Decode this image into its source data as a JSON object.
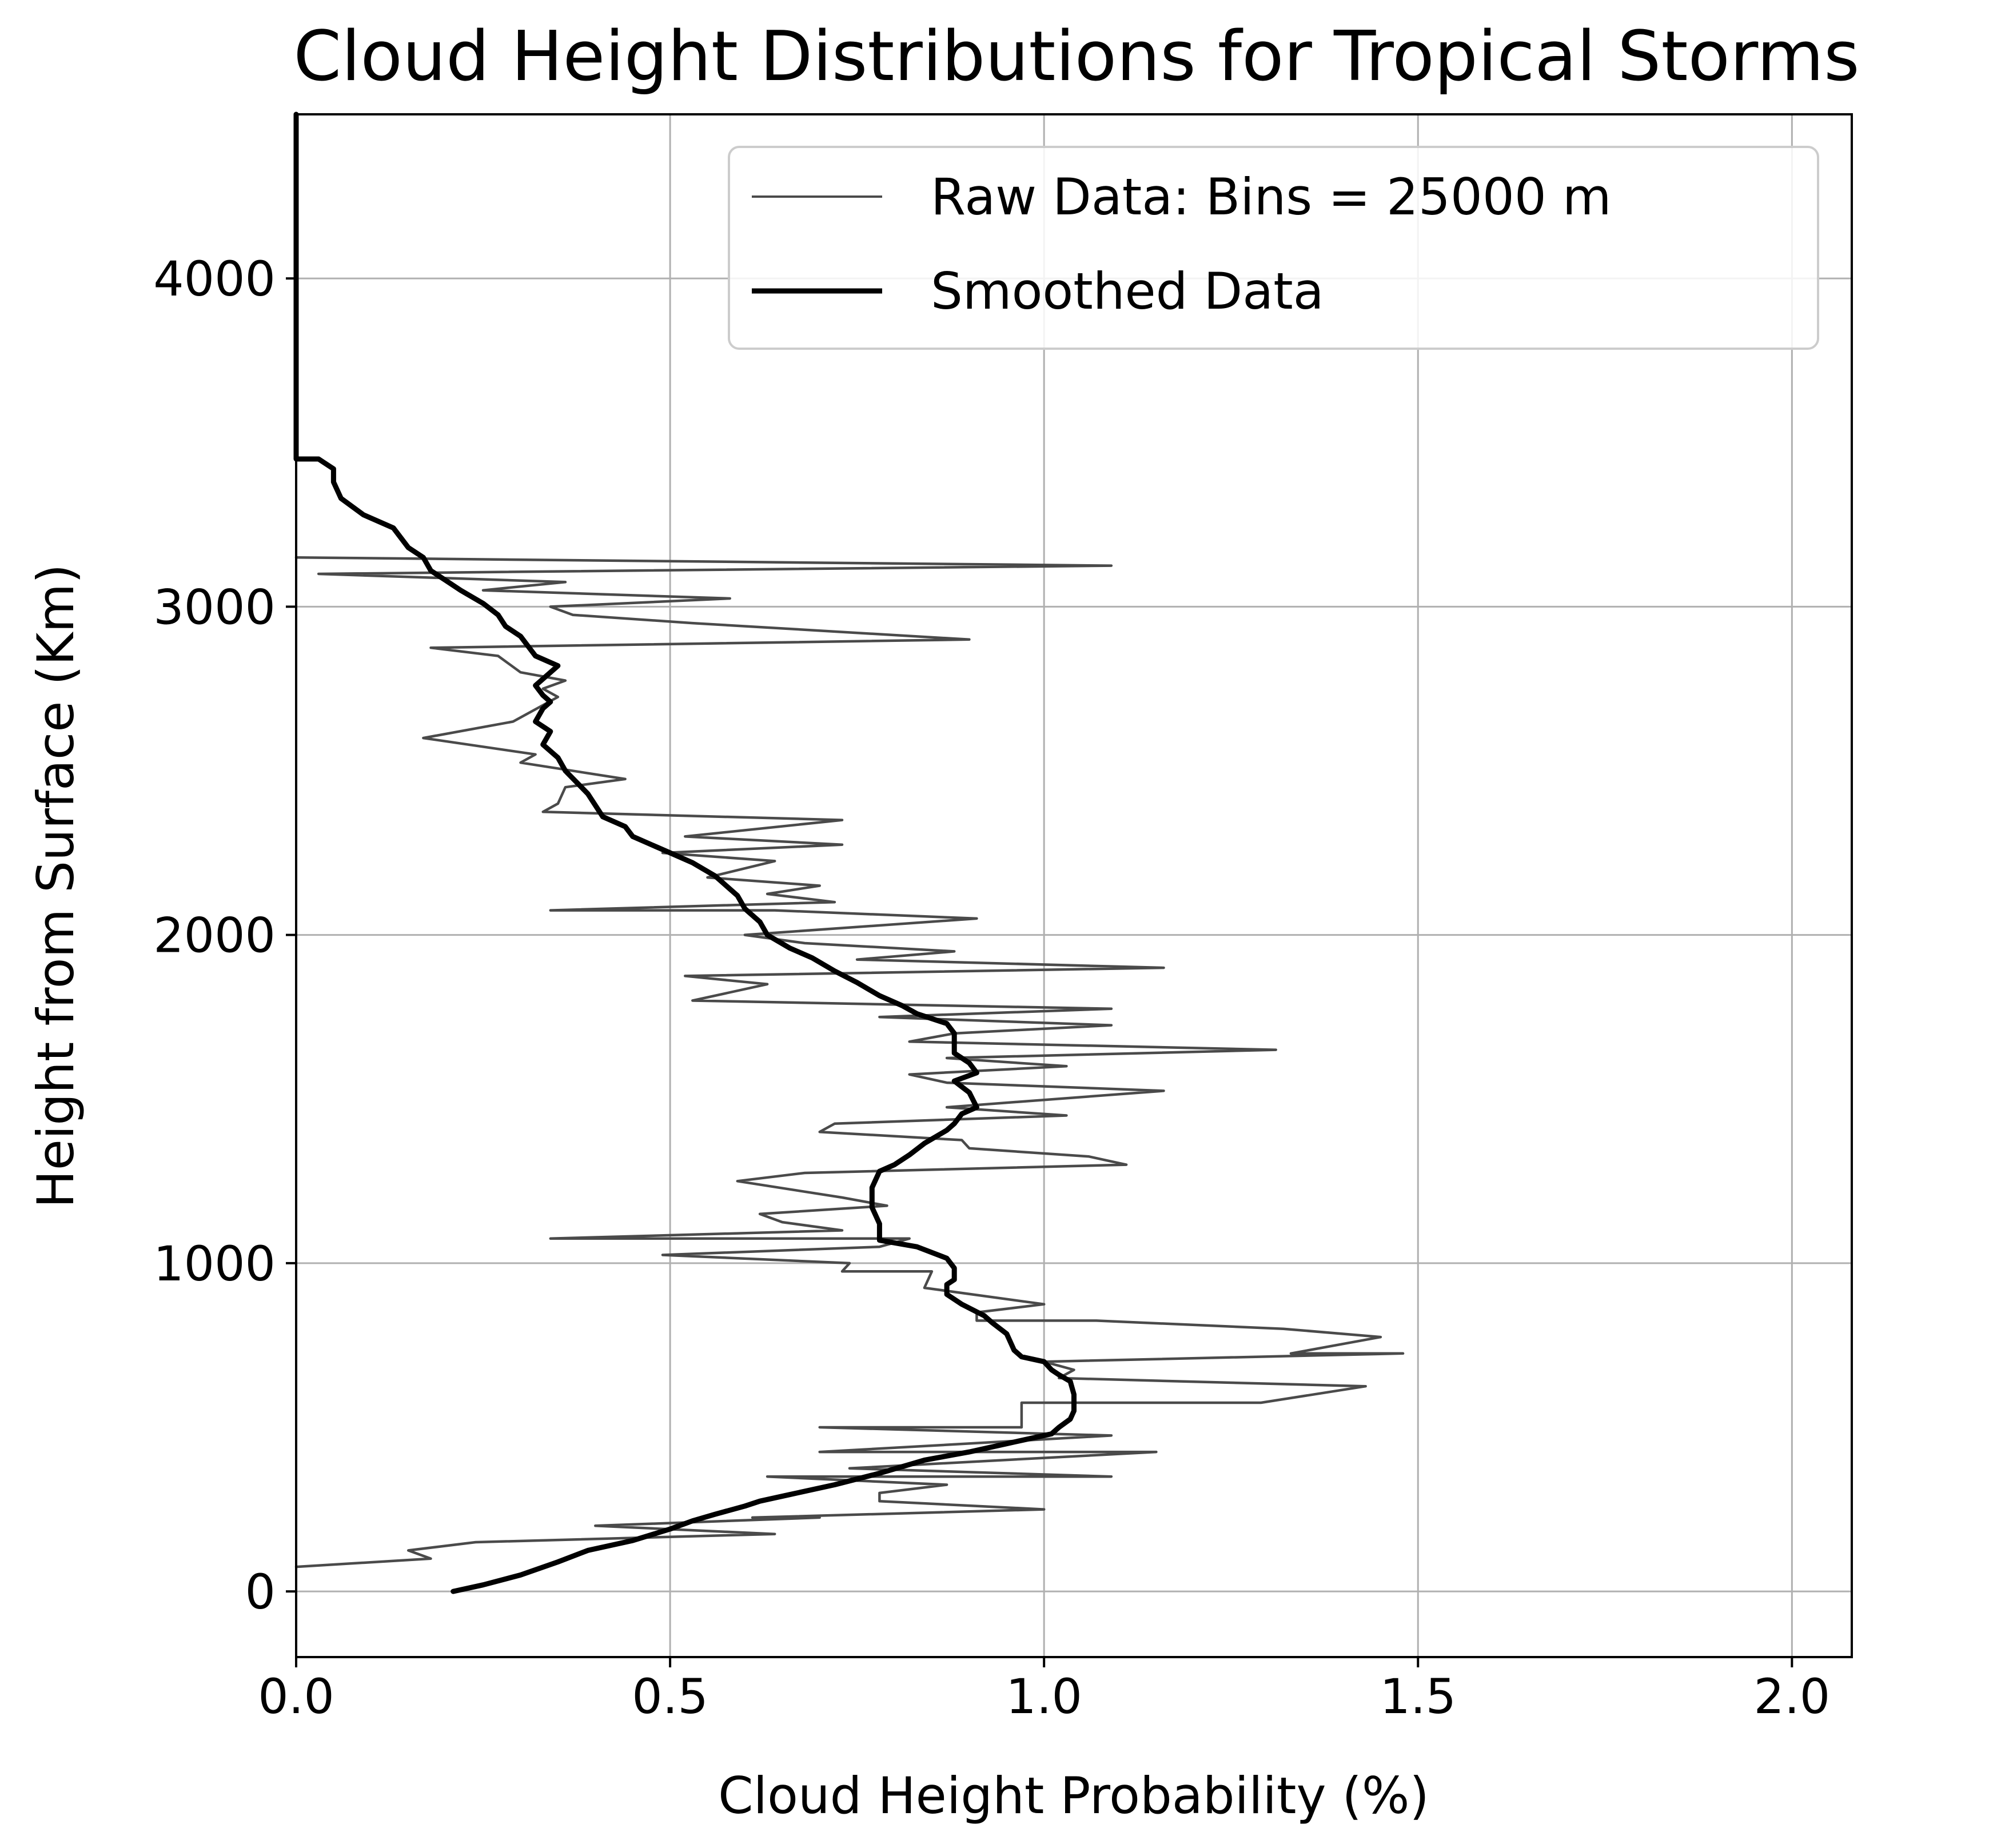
{
  "chart_data": {
    "type": "line",
    "title": "Cloud Height Distributions for Tropical Storms",
    "xlabel": "Cloud Height Probability (%)",
    "ylabel": "Height from Surface (Km)",
    "xlim": [
      0.0,
      2.08
    ],
    "ylim": [
      -200,
      4500
    ],
    "xticks": [
      0.0,
      0.5,
      1.0,
      1.5,
      2.0
    ],
    "xtick_labels": [
      "0.0",
      "0.5",
      "1.0",
      "1.5",
      "2.0"
    ],
    "yticks": [
      0,
      1000,
      2000,
      3000,
      4000
    ],
    "ytick_labels": [
      "0",
      "1000",
      "2000",
      "3000",
      "4000"
    ],
    "grid": true,
    "legend_position": "top-right",
    "series": [
      {
        "name": "Raw Data: Bins = 25000 m",
        "color": "#4a4a4a",
        "style": "thin",
        "points": [
          [
            0.0,
            75
          ],
          [
            0.18,
            100
          ],
          [
            0.15,
            125
          ],
          [
            0.24,
            150
          ],
          [
            0.64,
            175
          ],
          [
            0.4,
            200
          ],
          [
            0.7,
            225
          ],
          [
            0.61,
            225
          ],
          [
            1.0,
            250
          ],
          [
            0.78,
            275
          ],
          [
            0.78,
            300
          ],
          [
            0.87,
            325
          ],
          [
            0.63,
            350
          ],
          [
            1.09,
            350
          ],
          [
            0.74,
            375
          ],
          [
            1.15,
            425
          ],
          [
            0.7,
            425
          ],
          [
            1.09,
            475
          ],
          [
            0.7,
            500
          ],
          [
            0.97,
            500
          ],
          [
            0.97,
            575
          ],
          [
            1.29,
            575
          ],
          [
            1.43,
            625
          ],
          [
            1.02,
            650
          ],
          [
            1.04,
            675
          ],
          [
            1.0,
            700
          ],
          [
            1.48,
            725
          ],
          [
            1.33,
            725
          ],
          [
            1.45,
            775
          ],
          [
            1.32,
            800
          ],
          [
            1.07,
            825
          ],
          [
            0.91,
            825
          ],
          [
            0.91,
            850
          ],
          [
            1.0,
            875
          ],
          [
            0.84,
            925
          ],
          [
            0.85,
            975
          ],
          [
            0.73,
            975
          ],
          [
            0.74,
            1000
          ],
          [
            0.49,
            1025
          ],
          [
            0.78,
            1050
          ],
          [
            0.82,
            1075
          ],
          [
            0.34,
            1075
          ],
          [
            0.73,
            1100
          ],
          [
            0.65,
            1125
          ],
          [
            0.62,
            1150
          ],
          [
            0.79,
            1175
          ],
          [
            0.73,
            1200
          ],
          [
            0.59,
            1250
          ],
          [
            0.68,
            1275
          ],
          [
            1.11,
            1300
          ],
          [
            1.06,
            1325
          ],
          [
            0.9,
            1350
          ],
          [
            0.89,
            1375
          ],
          [
            0.7,
            1400
          ],
          [
            0.72,
            1425
          ],
          [
            1.03,
            1450
          ],
          [
            0.87,
            1475
          ],
          [
            1.16,
            1525
          ],
          [
            0.87,
            1550
          ],
          [
            0.82,
            1575
          ],
          [
            1.03,
            1600
          ],
          [
            0.87,
            1625
          ],
          [
            1.31,
            1650
          ],
          [
            0.82,
            1675
          ],
          [
            0.88,
            1700
          ],
          [
            1.09,
            1725
          ],
          [
            0.78,
            1750
          ],
          [
            1.09,
            1775
          ],
          [
            0.53,
            1800
          ],
          [
            0.63,
            1850
          ],
          [
            0.52,
            1875
          ],
          [
            1.16,
            1900
          ],
          [
            0.75,
            1925
          ],
          [
            0.88,
            1950
          ],
          [
            0.68,
            1975
          ],
          [
            0.6,
            2000
          ],
          [
            0.91,
            2050
          ],
          [
            0.64,
            2075
          ],
          [
            0.34,
            2075
          ],
          [
            0.72,
            2100
          ],
          [
            0.63,
            2125
          ],
          [
            0.7,
            2150
          ],
          [
            0.55,
            2175
          ],
          [
            0.64,
            2225
          ],
          [
            0.49,
            2250
          ],
          [
            0.73,
            2275
          ],
          [
            0.52,
            2300
          ],
          [
            0.73,
            2350
          ],
          [
            0.33,
            2375
          ],
          [
            0.35,
            2400
          ],
          [
            0.36,
            2450
          ],
          [
            0.44,
            2475
          ],
          [
            0.3,
            2525
          ],
          [
            0.32,
            2550
          ],
          [
            0.17,
            2600
          ],
          [
            0.29,
            2650
          ],
          [
            0.33,
            2700
          ],
          [
            0.35,
            2725
          ],
          [
            0.33,
            2750
          ],
          [
            0.36,
            2775
          ],
          [
            0.3,
            2800
          ],
          [
            0.27,
            2850
          ],
          [
            0.18,
            2875
          ],
          [
            0.9,
            2900
          ],
          [
            0.53,
            2950
          ],
          [
            0.37,
            2975
          ],
          [
            0.34,
            3000
          ],
          [
            0.58,
            3025
          ],
          [
            0.25,
            3050
          ],
          [
            0.36,
            3075
          ],
          [
            0.03,
            3100
          ],
          [
            1.09,
            3125
          ],
          [
            0.0,
            3150
          ]
        ]
      },
      {
        "name": "Smoothed Data",
        "color": "#000000",
        "style": "thick",
        "points": [
          [
            0.21,
            0
          ],
          [
            0.25,
            20
          ],
          [
            0.3,
            50
          ],
          [
            0.35,
            90
          ],
          [
            0.39,
            125
          ],
          [
            0.45,
            155
          ],
          [
            0.5,
            190
          ],
          [
            0.53,
            215
          ],
          [
            0.56,
            235
          ],
          [
            0.6,
            260
          ],
          [
            0.62,
            275
          ],
          [
            0.66,
            295
          ],
          [
            0.72,
            325
          ],
          [
            0.78,
            360
          ],
          [
            0.84,
            400
          ],
          [
            0.9,
            425
          ],
          [
            0.95,
            450
          ],
          [
            0.99,
            470
          ],
          [
            1.01,
            480
          ],
          [
            1.02,
            500
          ],
          [
            1.035,
            525
          ],
          [
            1.04,
            550
          ],
          [
            1.04,
            600
          ],
          [
            1.035,
            640
          ],
          [
            1.02,
            660
          ],
          [
            1.01,
            675
          ],
          [
            1.0,
            700
          ],
          [
            0.97,
            715
          ],
          [
            0.96,
            735
          ],
          [
            0.95,
            785
          ],
          [
            0.93,
            820
          ],
          [
            0.92,
            840
          ],
          [
            0.89,
            875
          ],
          [
            0.87,
            905
          ],
          [
            0.87,
            935
          ],
          [
            0.88,
            950
          ],
          [
            0.88,
            985
          ],
          [
            0.87,
            1015
          ],
          [
            0.83,
            1050
          ],
          [
            0.78,
            1070
          ],
          [
            0.78,
            1120
          ],
          [
            0.77,
            1170
          ],
          [
            0.77,
            1230
          ],
          [
            0.78,
            1280
          ],
          [
            0.8,
            1300
          ],
          [
            0.82,
            1330
          ],
          [
            0.84,
            1365
          ],
          [
            0.87,
            1405
          ],
          [
            0.88,
            1425
          ],
          [
            0.89,
            1455
          ],
          [
            0.91,
            1475
          ],
          [
            0.9,
            1520
          ],
          [
            0.88,
            1555
          ],
          [
            0.91,
            1580
          ],
          [
            0.9,
            1610
          ],
          [
            0.88,
            1640
          ],
          [
            0.88,
            1700
          ],
          [
            0.87,
            1730
          ],
          [
            0.83,
            1760
          ],
          [
            0.81,
            1785
          ],
          [
            0.78,
            1815
          ],
          [
            0.75,
            1855
          ],
          [
            0.72,
            1890
          ],
          [
            0.69,
            1930
          ],
          [
            0.66,
            1960
          ],
          [
            0.63,
            2000
          ],
          [
            0.62,
            2040
          ],
          [
            0.6,
            2080
          ],
          [
            0.59,
            2120
          ],
          [
            0.57,
            2160
          ],
          [
            0.56,
            2180
          ],
          [
            0.53,
            2220
          ],
          [
            0.49,
            2260
          ],
          [
            0.45,
            2300
          ],
          [
            0.44,
            2330
          ],
          [
            0.41,
            2360
          ],
          [
            0.39,
            2430
          ],
          [
            0.36,
            2500
          ],
          [
            0.35,
            2540
          ],
          [
            0.33,
            2580
          ],
          [
            0.34,
            2620
          ],
          [
            0.32,
            2650
          ],
          [
            0.33,
            2690
          ],
          [
            0.34,
            2710
          ],
          [
            0.33,
            2730
          ],
          [
            0.32,
            2760
          ],
          [
            0.33,
            2780
          ],
          [
            0.35,
            2820
          ],
          [
            0.32,
            2850
          ],
          [
            0.31,
            2880
          ],
          [
            0.3,
            2910
          ],
          [
            0.28,
            2940
          ],
          [
            0.27,
            2975
          ],
          [
            0.25,
            3010
          ],
          [
            0.22,
            3050
          ],
          [
            0.2,
            3080
          ],
          [
            0.18,
            3110
          ],
          [
            0.17,
            3150
          ],
          [
            0.15,
            3180
          ],
          [
            0.13,
            3240
          ],
          [
            0.09,
            3280
          ],
          [
            0.06,
            3330
          ],
          [
            0.05,
            3380
          ],
          [
            0.05,
            3420
          ],
          [
            0.03,
            3450
          ],
          [
            0.0,
            3450
          ],
          [
            0.0,
            4500
          ]
        ]
      }
    ]
  }
}
